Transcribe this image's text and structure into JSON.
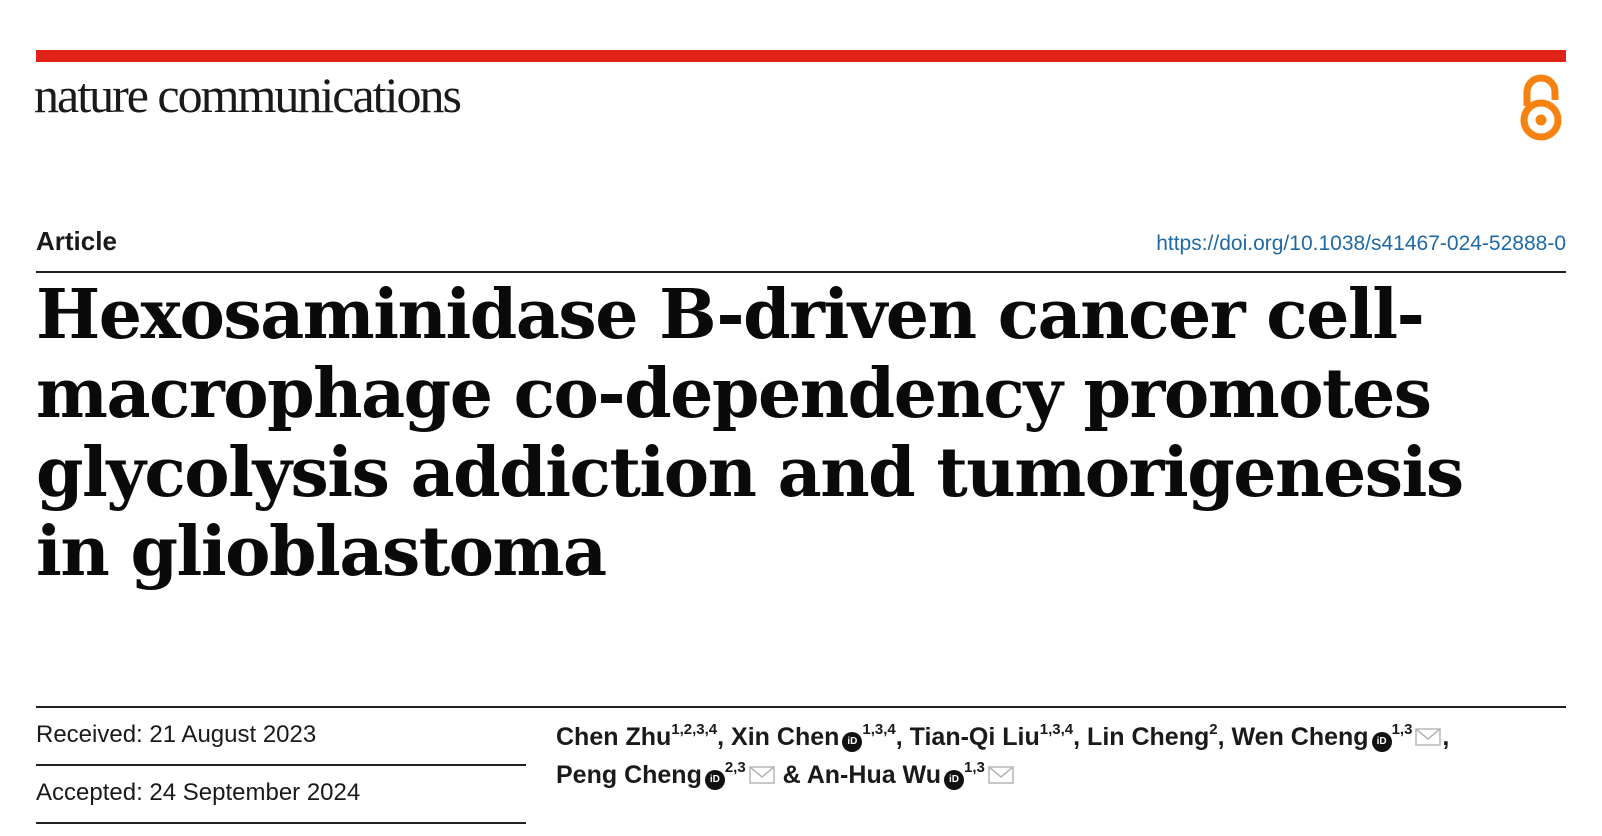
{
  "header": {
    "journal_name": "nature communications",
    "open_access_icon": "open-access-icon"
  },
  "meta": {
    "article_type": "Article",
    "doi": "https://doi.org/10.1038/s41467-024-52888-0"
  },
  "title": "Hexosaminidase B-driven cancer cell-macrophage co-dependency promotes glycolysis addiction and tumorigenesis in glioblastoma",
  "dates": {
    "received": "Received: 21 August 2023",
    "accepted": "Accepted: 24 September 2024"
  },
  "authors": [
    {
      "name": "Chen Zhu",
      "affil": "1,2,3,4",
      "orcid": false,
      "mail": false,
      "sep": ","
    },
    {
      "name": "Xin Chen",
      "affil": "1,3,4",
      "orcid": true,
      "mail": false,
      "sep": ","
    },
    {
      "name": "Tian-Qi Liu",
      "affil": "1,3,4",
      "orcid": false,
      "mail": false,
      "sep": ","
    },
    {
      "name": "Lin Cheng",
      "affil": "2",
      "orcid": false,
      "mail": false,
      "sep": ","
    },
    {
      "name": "Wen Cheng",
      "affil": "1,3",
      "orcid": true,
      "mail": true,
      "sep": ","
    },
    {
      "name": "Peng Cheng",
      "affil": "2,3",
      "orcid": true,
      "mail": true,
      "sep": " &"
    },
    {
      "name": "An-Hua Wu",
      "affil": "1,3",
      "orcid": true,
      "mail": true,
      "sep": ""
    }
  ],
  "icons": {
    "orcid": "orcid-icon",
    "mail": "mail-icon",
    "orcid_glyph": "iD"
  },
  "colors": {
    "accent_red": "#e2231a",
    "open_access_orange": "#f68212",
    "link_blue": "#1f6aa5"
  }
}
